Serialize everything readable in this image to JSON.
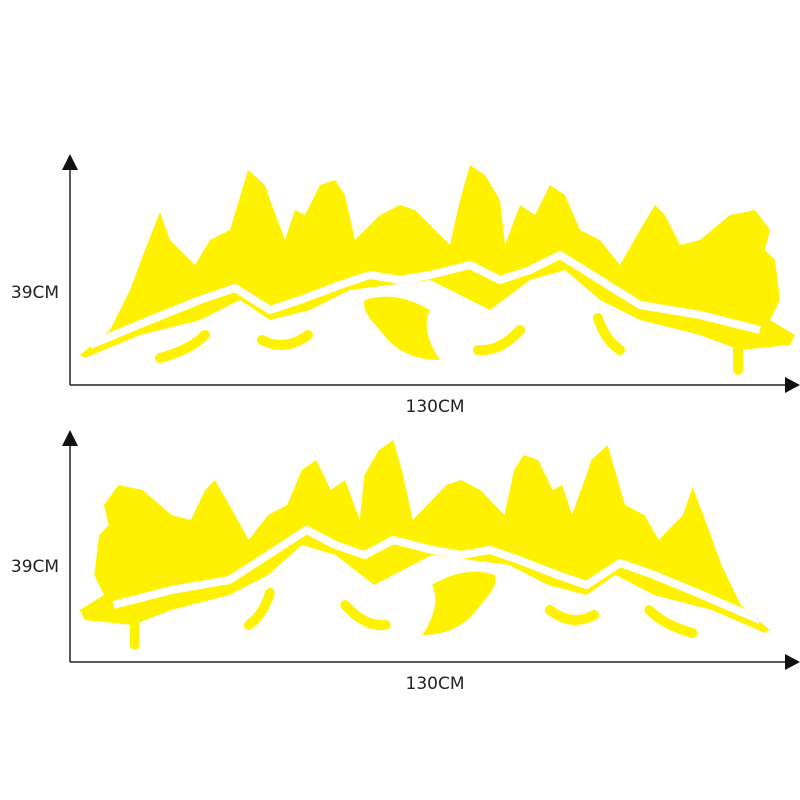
{
  "panels": [
    {
      "height_label": "39CM",
      "width_label": "130CM"
    },
    {
      "height_label": "39CM",
      "width_label": "130CM"
    }
  ]
}
